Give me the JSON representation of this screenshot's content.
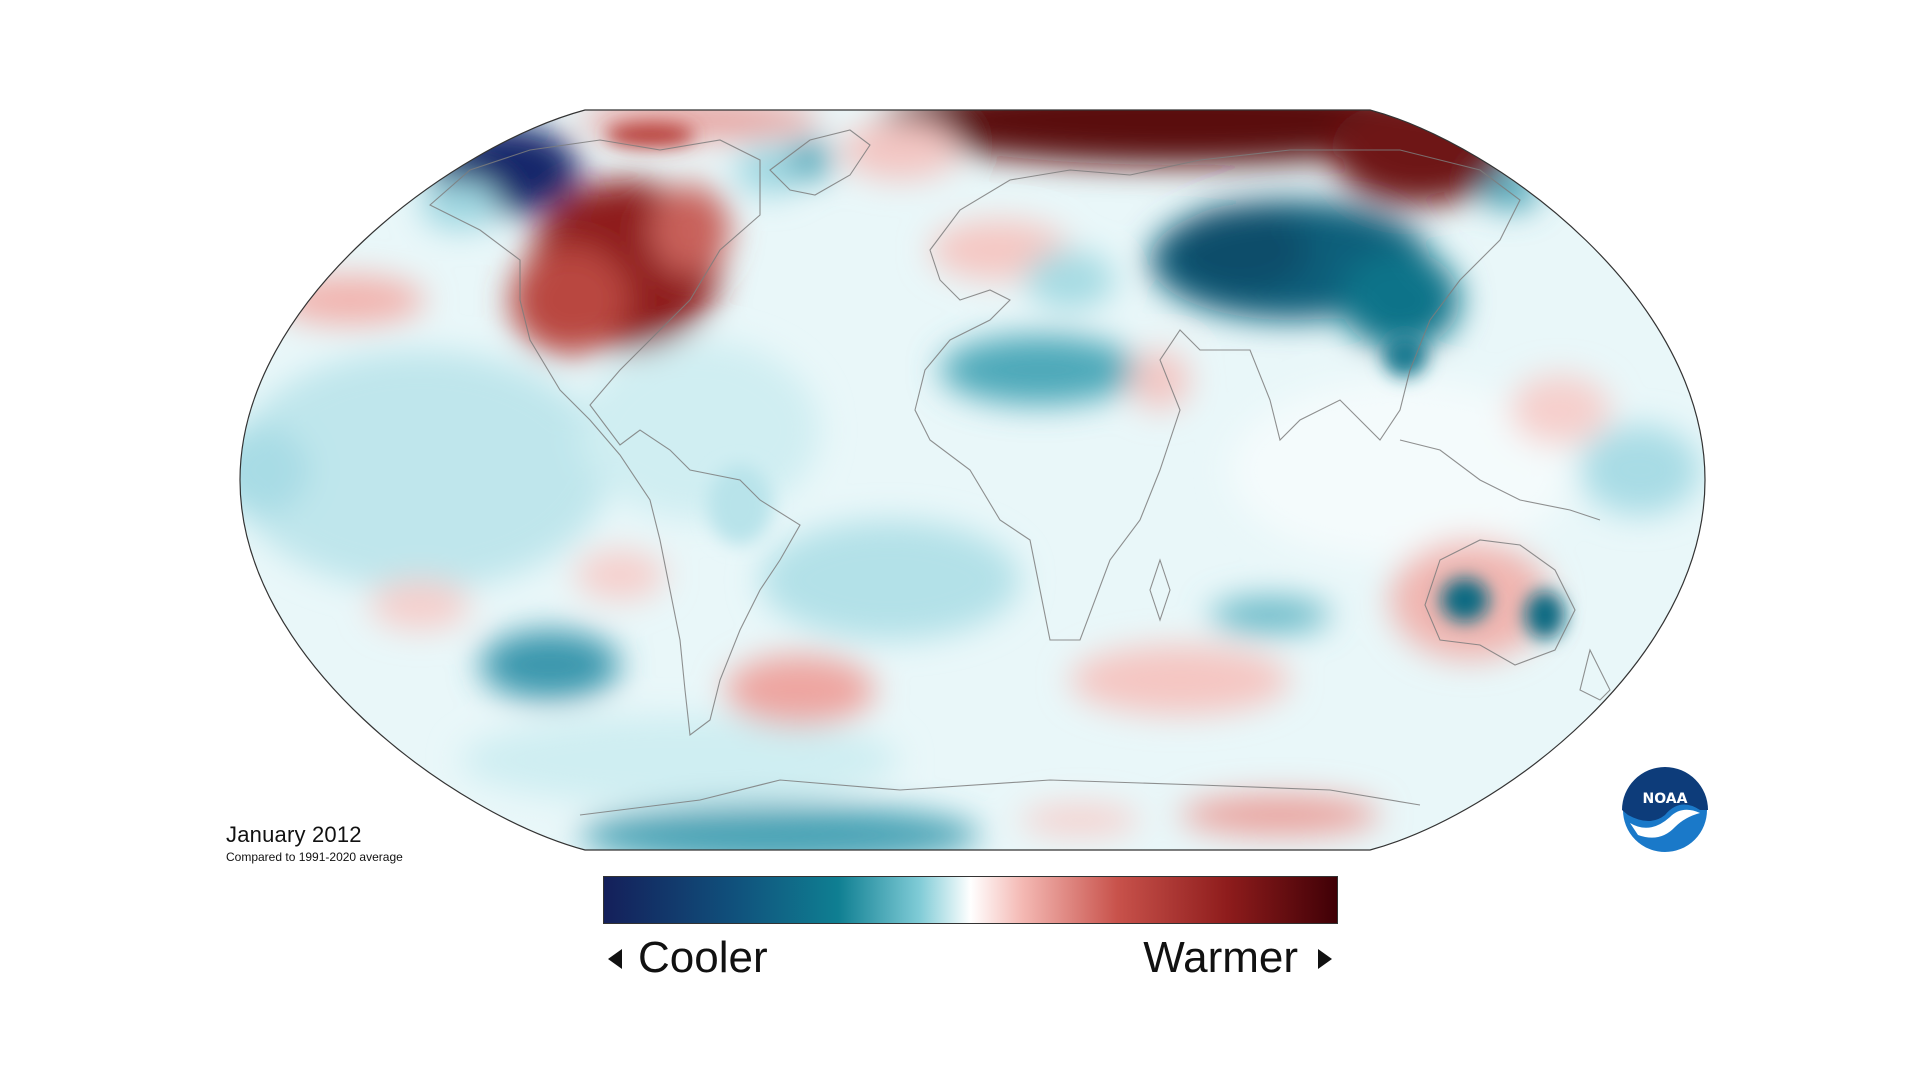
{
  "map": {
    "title": "January 2012",
    "subtitle": "Compared to 1991-2020 average",
    "projection": "robinson",
    "variable": "temperature anomaly"
  },
  "legend": {
    "low_label": "Cooler",
    "high_label": "Warmer",
    "colors": [
      "#14235c",
      "#0e6e88",
      "#8fd3dd",
      "#ffffff",
      "#f0a8a5",
      "#b63a35",
      "#4a0006"
    ]
  },
  "logo": {
    "text": "NOAA",
    "icon": "noaa-logo-icon"
  }
}
